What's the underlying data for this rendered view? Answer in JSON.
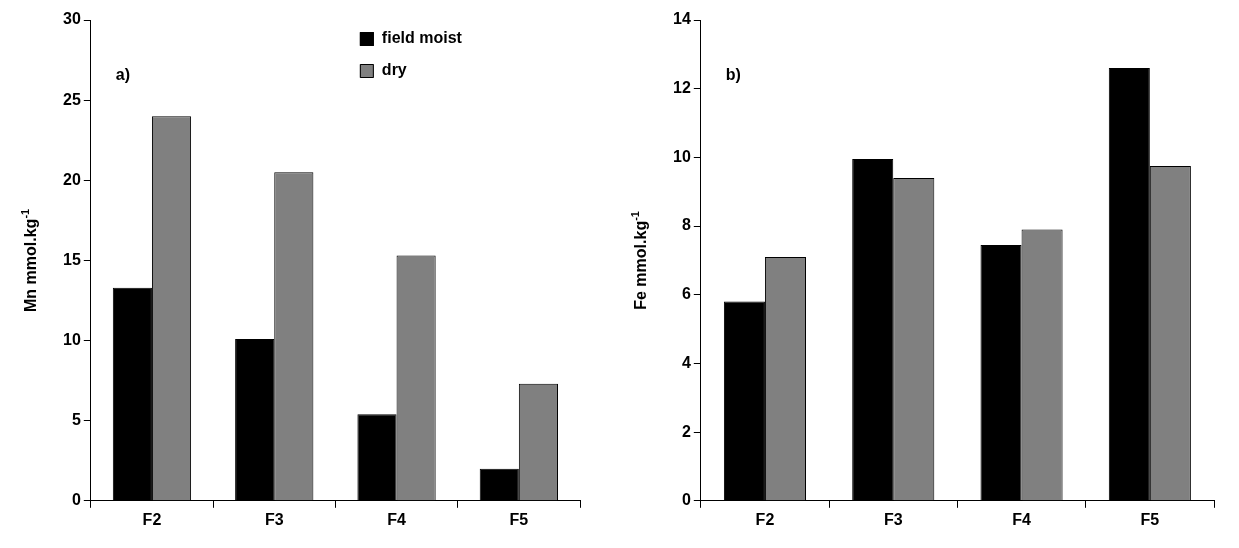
{
  "chart_data": [
    {
      "type": "bar",
      "ylabel": "Mn mmol.kg$^{-1}$",
      "annotations": [
        "a)"
      ],
      "categories": [
        "F2",
        "F3",
        "F4",
        "F5"
      ],
      "series": [
        {
          "name": "field moist",
          "color": "#000000",
          "values": [
            13.3,
            10.1,
            5.4,
            2.0
          ]
        },
        {
          "name": "dry",
          "color": "#808080",
          "values": [
            24.0,
            20.5,
            15.3,
            7.3
          ]
        }
      ],
      "ylim": [
        0,
        30
      ],
      "yticks": [
        0,
        5,
        10,
        15,
        20,
        25,
        30
      ],
      "grid": false,
      "legend": "top right"
    },
    {
      "type": "bar",
      "ylabel": "Fe mmol.kg$^{-1}$",
      "annotations": [
        "b)"
      ],
      "categories": [
        "F2",
        "F3",
        "F4",
        "F5"
      ],
      "series": [
        {
          "color": "#000000",
          "values": [
            5.8,
            9.95,
            7.45,
            12.6
          ]
        },
        {
          "color": "#808080",
          "values": [
            7.1,
            9.4,
            7.9,
            9.75
          ]
        }
      ],
      "ylim": [
        0,
        14
      ],
      "yticks": [
        0,
        2,
        4,
        6,
        8,
        10,
        12,
        14
      ],
      "grid": false,
      "legend": false
    }
  ]
}
